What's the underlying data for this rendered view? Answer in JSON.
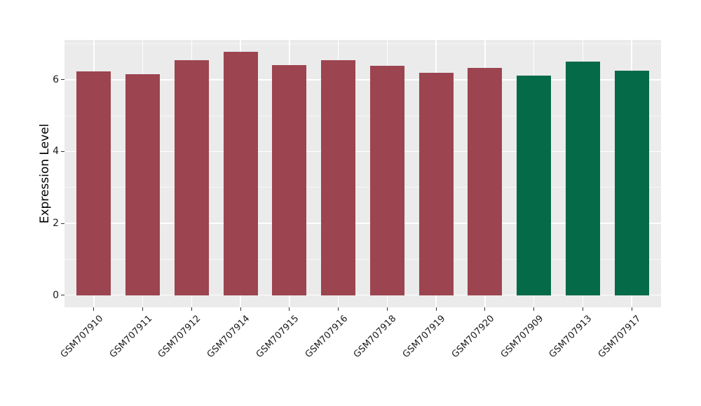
{
  "figure": {
    "ylabel": "Expression Level",
    "background": "#FFFFFF",
    "panel_background": "#EBEBEB",
    "grid_color": "#FFFFFF",
    "tick_color": "#333333",
    "text_color": "#1A1A1A"
  },
  "chart_data": {
    "type": "bar",
    "title": "",
    "xlabel": "",
    "ylabel": "Expression Level",
    "categories": [
      "GSM707910",
      "GSM707911",
      "GSM707912",
      "GSM707914",
      "GSM707915",
      "GSM707916",
      "GSM707918",
      "GSM707919",
      "GSM707920",
      "GSM707909",
      "GSM707913",
      "GSM707917"
    ],
    "values": [
      6.23,
      6.16,
      6.54,
      6.77,
      6.4,
      6.55,
      6.39,
      6.19,
      6.33,
      6.12,
      6.5,
      6.26
    ],
    "group_colors": {
      "other_samples": "#9C4450",
      "highlighted_samples": "#046A48"
    },
    "bar_groups": [
      "other_samples",
      "other_samples",
      "other_samples",
      "other_samples",
      "other_samples",
      "other_samples",
      "other_samples",
      "other_samples",
      "other_samples",
      "highlighted_samples",
      "highlighted_samples",
      "highlighted_samples"
    ],
    "yticks": [
      0,
      2,
      4,
      6
    ],
    "yticks_minor": [
      1,
      3,
      5,
      7
    ],
    "ylim": [
      -0.34,
      7.11
    ],
    "legend": "none",
    "grid": "horizontal major+minor, vertical major at category centers",
    "x_tick_label_rotation_deg": 45
  }
}
